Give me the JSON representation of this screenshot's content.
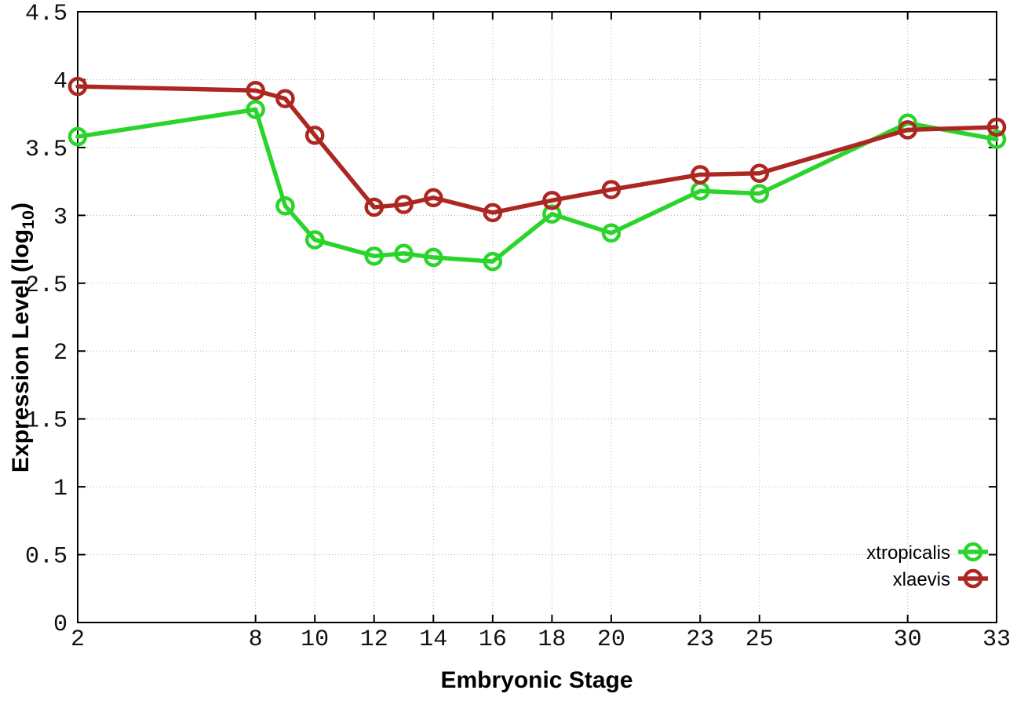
{
  "chart_data": {
    "type": "line",
    "title": "",
    "xlabel": "Embryonic Stage",
    "ylabel": {
      "pre": "Expression Level (log",
      "sub": "10",
      "post": ")"
    },
    "x": [
      2,
      8,
      9,
      10,
      12,
      13,
      14,
      16,
      18,
      20,
      23,
      25,
      30,
      33
    ],
    "xlim": [
      2,
      33
    ],
    "ylim": [
      0,
      4.5
    ],
    "xticks": [
      2,
      8,
      10,
      12,
      14,
      16,
      18,
      20,
      23,
      25,
      30,
      33
    ],
    "yticks": [
      0,
      0.5,
      1,
      1.5,
      2,
      2.5,
      3,
      3.5,
      4,
      4.5
    ],
    "ytick_labels": [
      "0",
      "0.5",
      "1",
      "1.5",
      "2",
      "2.5",
      "3",
      "3.5",
      "4",
      "4.5"
    ],
    "grid": true,
    "legend_position": "inside-bottom-right",
    "marker": "open-circle",
    "colors": {
      "axis": "#000000",
      "grid": "#b5b5b5",
      "background": "#ffffff"
    },
    "series": [
      {
        "name": "xtropicalis",
        "color": "#2bd42b",
        "values": [
          3.58,
          3.78,
          3.07,
          2.82,
          2.7,
          2.72,
          2.69,
          2.66,
          3.01,
          2.87,
          3.18,
          3.16,
          3.68,
          3.56
        ]
      },
      {
        "name": "xlaevis",
        "color": "#ad2722",
        "values": [
          3.95,
          3.92,
          3.86,
          3.59,
          3.06,
          3.08,
          3.13,
          3.02,
          3.11,
          3.19,
          3.3,
          3.31,
          3.63,
          3.65
        ]
      }
    ]
  }
}
